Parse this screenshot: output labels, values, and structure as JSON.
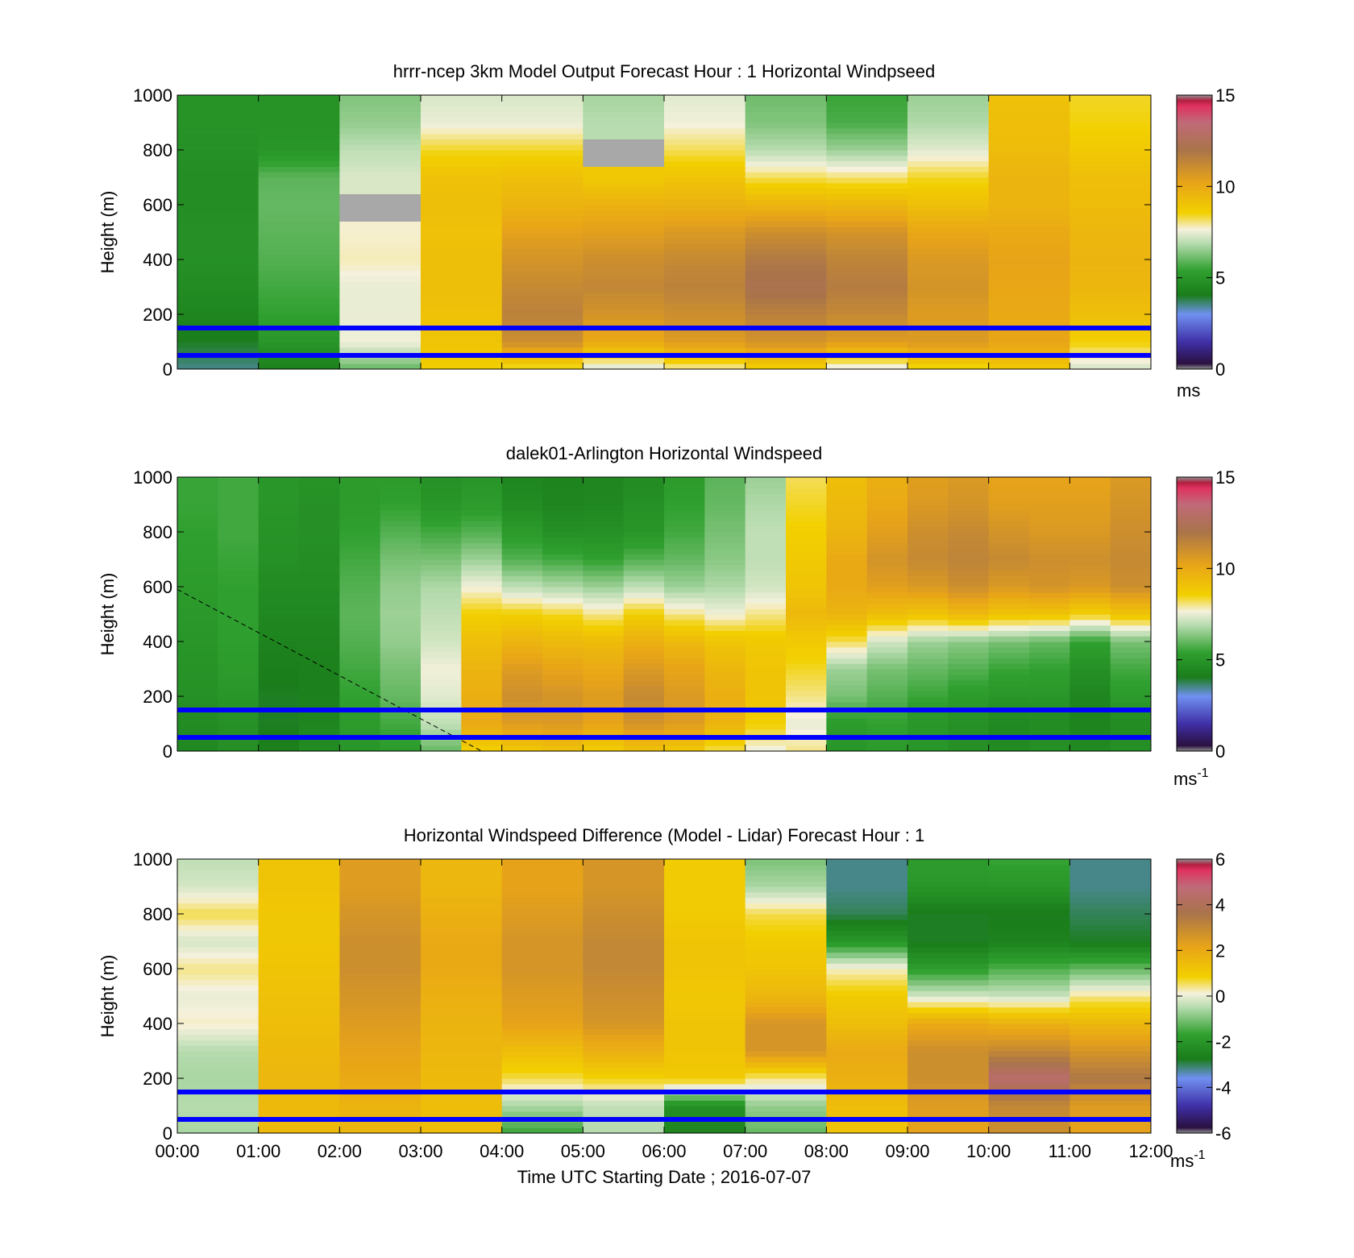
{
  "colors": {
    "overlay_line": "#0000ff",
    "frame": "#000000",
    "missing": "#ffffff",
    "clip": "#a8a8a8"
  },
  "chart_data": [
    {
      "type": "heatmap",
      "title": "hrrr-ncep 3km Model Output   Forecast Hour : 1 Horizontal Windpseed",
      "ylabel": "Height (m)",
      "ylim": [
        0,
        1000
      ],
      "yticks": [
        "0",
        "200",
        "400",
        "600",
        "800",
        "1000"
      ],
      "xlim": [
        0,
        12
      ],
      "colorbar": {
        "ticks": [
          "0",
          "5",
          "10",
          "15"
        ],
        "range": [
          0,
          15
        ],
        "unit": "ms",
        "unit_sup": ""
      },
      "overlay_lines_m": [
        50,
        150
      ],
      "x_centers_h": [
        0.5,
        1.5,
        2.5,
        3.5,
        4.5,
        5.5,
        6.5,
        7.5,
        8.5,
        9.5,
        10.5,
        11.5
      ],
      "heights_m": [
        0,
        100,
        200,
        300,
        400,
        500,
        600,
        700,
        800,
        900,
        1000
      ],
      "values": [
        [
          3.5,
          4.2,
          6.0,
          8.6,
          8.2,
          7.2,
          7.8,
          8.5,
          7.3,
          8.3,
          8.8,
          7.2
        ],
        [
          4.0,
          5.0,
          7.6,
          9.0,
          11.0,
          10.0,
          10.5,
          10.8,
          10.5,
          10.6,
          10.2,
          8.6
        ],
        [
          4.4,
          5.4,
          7.5,
          9.1,
          11.5,
          10.8,
          11.0,
          11.5,
          11.2,
          10.5,
          10.0,
          9.2
        ],
        [
          4.6,
          5.6,
          7.5,
          9.2,
          11.2,
          11.3,
          11.5,
          12.2,
          11.7,
          10.8,
          10.1,
          9.5
        ],
        [
          4.8,
          5.8,
          7.8,
          9.2,
          10.8,
          11.0,
          11.2,
          11.8,
          11.4,
          10.6,
          10.2,
          9.6
        ],
        [
          4.8,
          5.9,
          7.7,
          9.1,
          10.3,
          10.4,
          10.6,
          11.0,
          10.8,
          10.1,
          10.0,
          9.5
        ],
        [
          4.7,
          6.0,
          16.0,
          9.2,
          9.6,
          9.7,
          9.7,
          9.6,
          9.5,
          9.2,
          9.6,
          9.3
        ],
        [
          4.7,
          5.9,
          7.3,
          9.1,
          9.2,
          8.8,
          9.0,
          8.2,
          8.1,
          8.4,
          9.6,
          9.2
        ],
        [
          4.8,
          5.0,
          7.0,
          8.4,
          8.4,
          16.0,
          8.2,
          6.9,
          6.6,
          7.4,
          9.3,
          8.8
        ],
        [
          4.9,
          4.9,
          6.5,
          7.5,
          7.5,
          6.9,
          7.6,
          6.3,
          5.7,
          6.8,
          9.2,
          8.5
        ],
        [
          4.9,
          4.9,
          6.3,
          7.3,
          7.3,
          6.7,
          7.4,
          6.1,
          5.5,
          6.6,
          9.1,
          8.4
        ]
      ]
    },
    {
      "type": "heatmap",
      "title": "dalek01-Arlington  Horizontal Windspeed",
      "ylabel": "Height (m)",
      "ylim": [
        0,
        1000
      ],
      "yticks": [
        "0",
        "200",
        "400",
        "600",
        "800",
        "1000"
      ],
      "xlim": [
        0,
        12
      ],
      "colorbar": {
        "ticks": [
          "0",
          "5",
          "10",
          "15"
        ],
        "range": [
          0,
          15
        ],
        "unit": "ms",
        "unit_sup": "-1"
      },
      "overlay_lines_m": [
        50,
        150
      ],
      "dashed_line": [
        [
          0,
          590
        ],
        [
          3.75,
          0
        ]
      ],
      "x_centers_h": [
        0.25,
        0.75,
        1.25,
        1.75,
        2.25,
        2.75,
        3.25,
        3.75,
        4.25,
        4.75,
        5.25,
        5.75,
        6.25,
        6.75,
        7.25,
        7.75,
        8.25,
        8.75,
        9.25,
        9.75,
        10.25,
        10.75,
        11.25,
        11.75
      ],
      "heights_m": [
        0,
        100,
        200,
        300,
        400,
        500,
        600,
        700,
        800,
        900,
        1000
      ],
      "values": [
        [
          4.5,
          4.8,
          4.2,
          4.6,
          5.0,
          5.2,
          6.0,
          8.5,
          8.8,
          9.0,
          8.6,
          9.0,
          8.8,
          8.2,
          7.5,
          8.0,
          5.0,
          5.2,
          5.0,
          4.8,
          4.6,
          4.8,
          4.6,
          4.8
        ],
        [
          4.6,
          4.8,
          4.0,
          4.4,
          5.2,
          5.6,
          7.0,
          10.0,
          10.5,
          10.6,
          10.2,
          10.8,
          10.5,
          9.6,
          8.6,
          7.5,
          5.2,
          5.4,
          5.0,
          4.8,
          4.5,
          4.6,
          4.3,
          4.6
        ],
        [
          4.8,
          5.0,
          4.0,
          4.2,
          5.4,
          6.0,
          7.4,
          9.8,
          11.0,
          10.8,
          10.5,
          11.2,
          10.6,
          9.8,
          9.0,
          8.0,
          6.2,
          5.8,
          5.5,
          5.2,
          5.0,
          5.0,
          4.4,
          5.2
        ],
        [
          4.9,
          5.2,
          4.1,
          4.2,
          5.6,
          6.2,
          7.6,
          9.6,
          10.5,
          10.2,
          10.0,
          10.6,
          10.2,
          9.5,
          9.0,
          8.4,
          6.6,
          6.2,
          6.0,
          5.8,
          5.5,
          5.4,
          4.8,
          5.6
        ],
        [
          5.0,
          5.3,
          4.3,
          4.3,
          5.8,
          6.5,
          7.2,
          9.2,
          9.6,
          9.4,
          9.3,
          9.8,
          9.4,
          9.0,
          8.8,
          8.8,
          8.2,
          7.2,
          6.6,
          6.4,
          6.2,
          6.0,
          5.4,
          6.2
        ],
        [
          5.1,
          5.4,
          4.5,
          4.5,
          5.9,
          6.6,
          7.0,
          8.6,
          8.6,
          8.4,
          8.0,
          8.6,
          8.0,
          7.6,
          8.0,
          9.4,
          9.6,
          9.2,
          9.0,
          9.4,
          9.0,
          9.0,
          8.6,
          9.0
        ],
        [
          5.2,
          5.4,
          4.6,
          4.6,
          5.8,
          6.5,
          6.8,
          7.6,
          7.0,
          6.8,
          6.6,
          7.0,
          6.6,
          6.8,
          7.2,
          9.0,
          10.0,
          10.4,
          10.6,
          11.0,
          10.6,
          10.8,
          10.6,
          11.0
        ],
        [
          5.3,
          5.5,
          4.8,
          4.7,
          5.6,
          6.2,
          6.2,
          6.6,
          5.8,
          5.6,
          5.4,
          5.8,
          6.0,
          6.4,
          7.0,
          8.8,
          10.0,
          10.8,
          11.2,
          11.4,
          11.2,
          11.0,
          11.0,
          11.2
        ],
        [
          5.4,
          5.6,
          4.9,
          4.8,
          5.4,
          5.8,
          5.6,
          5.8,
          5.2,
          4.8,
          4.8,
          5.0,
          5.6,
          6.2,
          7.0,
          8.6,
          9.6,
          10.4,
          11.0,
          11.2,
          10.8,
          10.6,
          10.6,
          11.0
        ],
        [
          5.5,
          5.6,
          5.0,
          4.8,
          5.2,
          5.4,
          5.0,
          5.2,
          4.6,
          4.4,
          4.5,
          4.8,
          5.4,
          6.0,
          6.8,
          8.4,
          9.4,
          10.0,
          10.6,
          10.8,
          10.4,
          10.4,
          10.4,
          10.8
        ],
        [
          5.5,
          5.6,
          5.0,
          4.9,
          5.2,
          5.2,
          4.8,
          5.0,
          4.4,
          4.3,
          4.4,
          4.6,
          5.2,
          5.9,
          6.6,
          8.2,
          9.2,
          9.8,
          10.4,
          10.6,
          10.2,
          10.2,
          10.2,
          10.6
        ]
      ]
    },
    {
      "type": "heatmap",
      "title": "Horizontal Windspeed Difference (Model - Lidar) Forecast Hour : 1",
      "ylabel": "Height (m)",
      "xlabel": "Time UTC  Starting Date ; 2016-07-07",
      "ylim": [
        0,
        1000
      ],
      "yticks": [
        "0",
        "200",
        "400",
        "600",
        "800",
        "1000"
      ],
      "xlim": [
        0,
        12
      ],
      "xticks": [
        "00:00",
        "01:00",
        "02:00",
        "03:00",
        "04:00",
        "05:00",
        "06:00",
        "07:00",
        "08:00",
        "09:00",
        "10:00",
        "11:00",
        "12:00"
      ],
      "colorbar": {
        "ticks": [
          "-6",
          "-4",
          "-2",
          "0",
          "2",
          "4",
          "6"
        ],
        "range": [
          -6,
          6
        ],
        "unit": "ms",
        "unit_sup": "-1"
      },
      "overlay_lines_m": [
        50,
        150
      ],
      "x_centers_h": [
        0.5,
        1.5,
        2.5,
        3.5,
        4.5,
        5.5,
        6.5,
        7.5,
        8.5,
        9.5,
        10.5,
        11.5
      ],
      "heights_m": [
        0,
        100,
        200,
        300,
        400,
        500,
        600,
        700,
        800,
        900,
        1000
      ],
      "values": [
        [
          -0.6,
          1.5,
          1.6,
          1.4,
          -1.6,
          -0.5,
          -2.5,
          -1.2,
          1.2,
          2.2,
          2.8,
          2.2
        ],
        [
          -0.5,
          1.5,
          1.7,
          1.4,
          -0.6,
          -0.4,
          -2.2,
          -0.8,
          1.4,
          2.4,
          3.0,
          2.4
        ],
        [
          -0.6,
          1.6,
          2.0,
          1.5,
          0.6,
          0.8,
          1.0,
          0.4,
          1.8,
          2.8,
          4.5,
          3.5
        ],
        [
          -0.5,
          1.5,
          2.2,
          1.6,
          1.4,
          1.8,
          1.2,
          2.6,
          2.0,
          2.8,
          3.0,
          2.6
        ],
        [
          0.2,
          1.4,
          2.4,
          1.7,
          2.2,
          2.6,
          1.2,
          2.6,
          1.4,
          2.0,
          1.8,
          1.6
        ],
        [
          0.0,
          1.3,
          2.6,
          1.8,
          2.4,
          2.8,
          1.1,
          1.6,
          1.0,
          -0.2,
          -0.3,
          0.4
        ],
        [
          0.4,
          1.2,
          2.8,
          2.0,
          2.6,
          3.0,
          1.2,
          1.2,
          0.2,
          -1.8,
          -1.4,
          -1.2
        ],
        [
          -0.2,
          1.1,
          2.8,
          2.0,
          2.6,
          3.0,
          1.2,
          1.0,
          -2.0,
          -2.8,
          -2.6,
          -2.8
        ],
        [
          0.6,
          1.1,
          2.6,
          1.8,
          2.4,
          2.8,
          1.0,
          0.6,
          -3.0,
          -2.8,
          -2.8,
          -3.0
        ],
        [
          -0.2,
          1.2,
          2.4,
          1.6,
          2.2,
          2.6,
          1.0,
          -0.6,
          -3.2,
          -2.0,
          -2.0,
          -3.2
        ],
        [
          -0.4,
          1.2,
          2.4,
          1.6,
          2.2,
          2.6,
          1.0,
          -1.0,
          -3.2,
          -1.8,
          -1.6,
          -3.2
        ]
      ]
    }
  ]
}
